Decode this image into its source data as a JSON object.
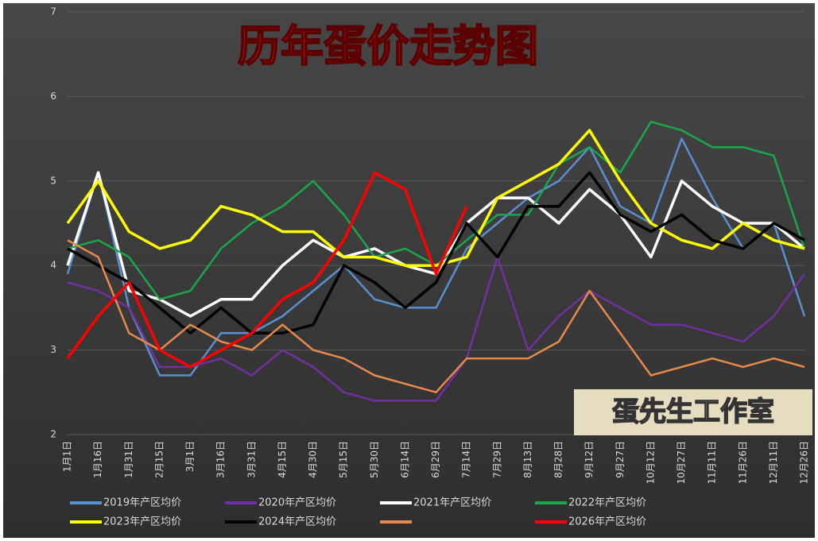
{
  "chart_data": {
    "type": "line",
    "title": "历年蛋价走势图",
    "watermark": "蛋先生工作室",
    "categories": [
      "1月1日",
      "1月16日",
      "1月31日",
      "2月15日",
      "3月1日",
      "3月16日",
      "3月31日",
      "4月15日",
      "4月30日",
      "5月15日",
      "5月30日",
      "6月14日",
      "6月29日",
      "7月14日",
      "7月29日",
      "8月13日",
      "8月28日",
      "9月12日",
      "9月27日",
      "10月12日",
      "10月27日",
      "11月11日",
      "11月26日",
      "12月11日",
      "12月26日"
    ],
    "ylim": [
      2,
      7
    ],
    "yticks": [
      2,
      3,
      4,
      5,
      6,
      7
    ],
    "grid": true,
    "series": [
      {
        "name": "2019年产区均价",
        "color": "#5b8fd0",
        "values": [
          3.9,
          5.1,
          3.5,
          2.7,
          2.7,
          3.2,
          3.2,
          3.4,
          3.7,
          4.0,
          3.6,
          3.5,
          3.5,
          4.2,
          4.5,
          4.8,
          5.0,
          5.4,
          4.7,
          4.5,
          5.5,
          4.8,
          4.2,
          4.5,
          3.4
        ]
      },
      {
        "name": "2020年产区均价",
        "color": "#7030a0",
        "values": [
          3.8,
          3.7,
          3.5,
          2.8,
          2.8,
          2.9,
          2.7,
          3.0,
          2.8,
          2.5,
          2.4,
          2.4,
          2.4,
          2.9,
          4.1,
          3.0,
          3.4,
          3.7,
          3.5,
          3.3,
          3.3,
          3.2,
          3.1,
          3.4,
          3.9
        ]
      },
      {
        "name": "2021年产区均价",
        "color": "#ffffff",
        "values": [
          4.0,
          5.1,
          3.7,
          3.6,
          3.4,
          3.6,
          3.6,
          4.0,
          4.3,
          4.1,
          4.2,
          4.0,
          3.9,
          4.5,
          4.8,
          4.8,
          4.5,
          4.9,
          4.6,
          4.1,
          5.0,
          4.7,
          4.5,
          4.5,
          4.2
        ]
      },
      {
        "name": "2022年产区均价",
        "color": "#1aa64a",
        "values": [
          4.2,
          4.3,
          4.1,
          3.6,
          3.7,
          4.2,
          4.5,
          4.7,
          5.0,
          4.6,
          4.1,
          4.2,
          4.0,
          4.3,
          4.6,
          4.6,
          5.2,
          5.4,
          5.1,
          5.7,
          5.6,
          5.4,
          5.4,
          5.3,
          4.2
        ]
      },
      {
        "name": "2023年产区均价",
        "color": "#ffff00",
        "values": [
          4.5,
          5.0,
          4.4,
          4.2,
          4.3,
          4.7,
          4.6,
          4.4,
          4.4,
          4.1,
          4.1,
          4.0,
          4.0,
          4.1,
          4.8,
          5.0,
          5.2,
          5.6,
          5.0,
          4.5,
          4.3,
          4.2,
          4.5,
          4.3,
          4.2
        ]
      },
      {
        "name": "2024年产区均价",
        "color": "#000000",
        "values": [
          4.2,
          4.0,
          3.8,
          3.5,
          3.2,
          3.5,
          3.2,
          3.2,
          3.3,
          4.0,
          3.8,
          3.5,
          3.8,
          4.5,
          4.1,
          4.7,
          4.7,
          5.1,
          4.6,
          4.4,
          4.6,
          4.3,
          4.2,
          4.5,
          4.3
        ]
      },
      {
        "name": null,
        "color": "#e8894a",
        "values": [
          4.3,
          4.1,
          3.2,
          3.0,
          3.3,
          3.1,
          3.0,
          3.3,
          3.0,
          2.9,
          2.7,
          2.6,
          2.5,
          2.9,
          2.9,
          2.9,
          3.1,
          3.7,
          3.2,
          2.7,
          2.8,
          2.9,
          2.8,
          2.9,
          2.8
        ]
      },
      {
        "name": "2026年产区均价",
        "color": "#ff0000",
        "values": [
          2.9,
          3.4,
          3.8,
          3.0,
          2.8,
          3.0,
          3.2,
          3.6,
          3.8,
          4.3,
          5.1,
          4.9,
          3.9,
          4.7,
          null,
          null,
          null,
          null,
          null,
          null,
          null,
          null,
          null,
          null,
          null
        ]
      }
    ]
  }
}
